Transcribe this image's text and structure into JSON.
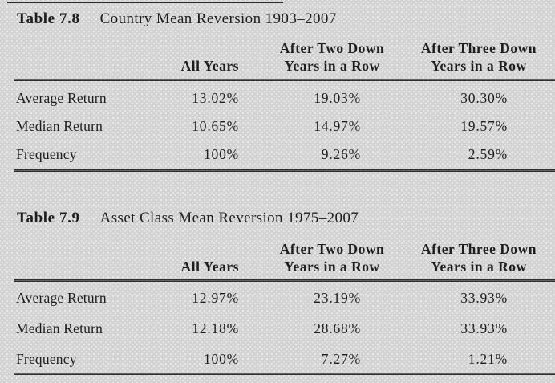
{
  "tables": [
    {
      "label": "Table 7.8",
      "title": "Country Mean Reversion 1903–2007",
      "columns": [
        {
          "l1": "",
          "l2": "All Years"
        },
        {
          "l1": "After Two Down",
          "l2": "Years in a Row"
        },
        {
          "l1": "After Three Down",
          "l2": "Years in a Row"
        }
      ],
      "rows": [
        {
          "label": "Average Return",
          "values": [
            "13.02%",
            "19.03%",
            "30.30%"
          ]
        },
        {
          "label": "Median Return",
          "values": [
            "10.65%",
            "14.97%",
            "19.57%"
          ]
        },
        {
          "label": "Frequency",
          "values": [
            "100%",
            "9.26%",
            "2.59%"
          ]
        }
      ]
    },
    {
      "label": "Table 7.9",
      "title": "Asset Class Mean Reversion 1975–2007",
      "columns": [
        {
          "l1": "",
          "l2": "All Years"
        },
        {
          "l1": "After Two Down",
          "l2": "Years in a Row"
        },
        {
          "l1": "After Three Down",
          "l2": "Years in a Row"
        }
      ],
      "rows": [
        {
          "label": "Average Return",
          "values": [
            "12.97%",
            "23.19%",
            "33.93%"
          ]
        },
        {
          "label": "Median Return",
          "values": [
            "12.18%",
            "28.68%",
            "33.93%"
          ]
        },
        {
          "label": "Frequency",
          "values": [
            "100%",
            "7.27%",
            "1.21%"
          ]
        }
      ]
    }
  ]
}
